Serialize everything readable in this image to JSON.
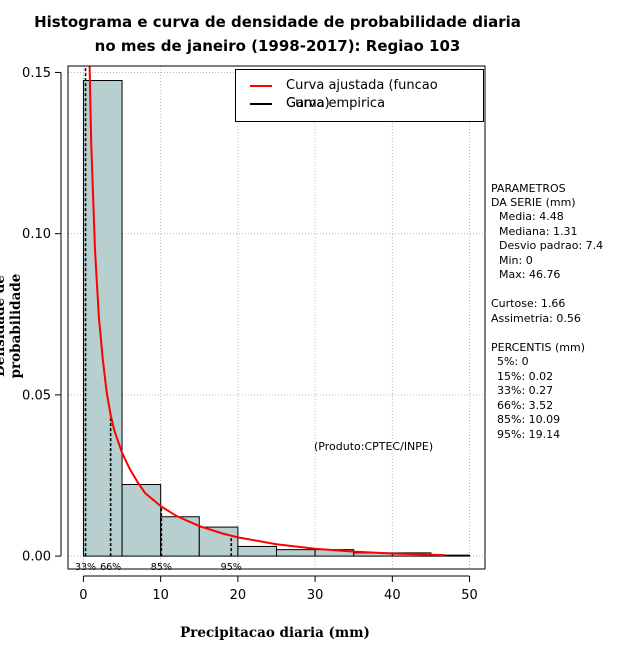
{
  "title_line1": "Histograma e curva de densidade de probabilidade diaria",
  "title_line2": "no mes de janeiro (1998-2017): Regiao 103",
  "credit": "(Produto:CPTEC/INPE)",
  "legend": {
    "fitted_label": "Curva ajustada (funcao Gama)",
    "empirical_label": "Curva empirica",
    "fitted_color": "#ff0000",
    "empirical_color": "#000000"
  },
  "params": {
    "heading1": "PARAMETROS",
    "heading2": "DA SERIE (mm)",
    "lines": [
      "Media: 4.48",
      "Mediana: 1.31",
      "Desvio padrao: 7.4",
      "Min: 0",
      "Max: 46.76"
    ],
    "shape": [
      "Curtose: 1.66",
      "Assimetria: 0.56"
    ],
    "percentis_heading": "PERCENTIS (mm)",
    "percentis": [
      "5%: 0",
      "15%: 0.02",
      "33%: 0.27",
      "66%: 3.52",
      "85%: 10.09",
      "95%: 19.14"
    ]
  },
  "chart_data": {
    "type": "bar",
    "title": "Histograma e curva de densidade de probabilidade diaria no mes de janeiro (1998-2017): Regiao 103",
    "xlabel": "Precipitacao diaria (mm)",
    "ylabel": "Densidade de probabilidade",
    "xlim": [
      -2,
      52
    ],
    "ylim": [
      -0.004,
      0.152
    ],
    "xticks": [
      0,
      10,
      20,
      30,
      40,
      50
    ],
    "xtick_labels": [
      "0",
      "10",
      "20",
      "30",
      "40",
      "50"
    ],
    "yticks": [
      0.0,
      0.05,
      0.1,
      0.15
    ],
    "ytick_labels": [
      "0.00",
      "0.05",
      "0.10",
      "0.15"
    ],
    "grid": true,
    "bin_edges": [
      0,
      5,
      10,
      15,
      20,
      25,
      30,
      35,
      40,
      45,
      50
    ],
    "bin_density": [
      0.1475,
      0.0222,
      0.0122,
      0.009,
      0.003,
      0.002,
      0.002,
      0.001,
      0.001,
      0.0003
    ],
    "bar_fill": "#b7cfcf",
    "fitted_curve": {
      "name": "Curva ajustada (funcao Gama)",
      "x": [
        0.8,
        1.0,
        1.5,
        2.0,
        2.5,
        3.0,
        3.5,
        4.0,
        5.0,
        6.0,
        7.0,
        8.0,
        10.0,
        12.0,
        15.0,
        18.0,
        20.0,
        25.0,
        30.0,
        35.0,
        40.0,
        45.0,
        46.76
      ],
      "y": [
        0.158,
        0.128,
        0.095,
        0.074,
        0.061,
        0.051,
        0.044,
        0.039,
        0.032,
        0.027,
        0.023,
        0.0195,
        0.0155,
        0.0125,
        0.0093,
        0.007,
        0.0058,
        0.0037,
        0.0023,
        0.0014,
        0.0008,
        0.0004,
        0.0003
      ]
    },
    "percentile_markers": [
      {
        "label": "33%",
        "value": 0.27,
        "density": 0.152
      },
      {
        "label": "66%",
        "value": 3.52,
        "density": 0.044
      },
      {
        "label": "85%",
        "value": 10.09,
        "density": 0.0154
      },
      {
        "label": "95%",
        "value": 19.14,
        "density": 0.0062
      }
    ],
    "legend_position": "top-right"
  }
}
